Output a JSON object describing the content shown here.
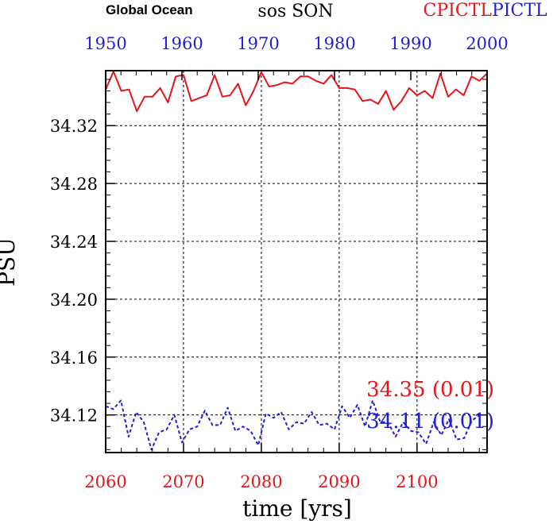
{
  "chart_data": {
    "type": "line",
    "title_left": "Global Ocean",
    "title_center": "sos SON",
    "legend": [
      {
        "label": "CPICTL",
        "color": "#e8141b"
      },
      {
        "label": "PICTL",
        "color": "#1f1fd6"
      }
    ],
    "xlabel": "time [yrs]",
    "ylabel": "PSU",
    "bottom_axis": {
      "ticks": [
        "2060",
        "2070",
        "2080",
        "2090",
        "2100"
      ],
      "range": [
        2060,
        2109
      ],
      "color": "#e8141b"
    },
    "top_axis": {
      "ticks": [
        "1950",
        "1960",
        "1970",
        "1980",
        "1990",
        "2000"
      ],
      "range": [
        1950,
        2000
      ],
      "color": "#1f1fd6"
    },
    "y_axis": {
      "ticks": [
        "34.12",
        "34.16",
        "34.20",
        "34.24",
        "34.28",
        "34.32"
      ],
      "range": [
        34.094,
        34.358
      ]
    },
    "grid": true,
    "series": [
      {
        "name": "CPICTL",
        "color": "#e8141b",
        "style": "solid",
        "x_start": 2060,
        "values": [
          34.345,
          34.358,
          34.344,
          34.345,
          34.33,
          34.34,
          34.34,
          34.346,
          34.336,
          34.354,
          34.355,
          34.337,
          34.339,
          34.341,
          34.355,
          34.34,
          34.341,
          34.349,
          34.334,
          34.344,
          34.357,
          34.347,
          34.348,
          34.35,
          34.349,
          34.354,
          34.354,
          34.351,
          34.349,
          34.355,
          34.346,
          34.346,
          34.345,
          34.337,
          34.338,
          34.335,
          34.344,
          34.331,
          34.337,
          34.346,
          34.341,
          34.344,
          34.339,
          34.356,
          34.34,
          34.345,
          34.341,
          34.354,
          34.351,
          34.356
        ]
      },
      {
        "name": "PICTL",
        "color": "#1f1fd6",
        "style": "dashed",
        "x_start": 1950,
        "values": [
          34.126,
          34.124,
          34.13,
          34.105,
          34.122,
          34.115,
          34.096,
          34.108,
          34.11,
          34.12,
          34.101,
          34.11,
          34.112,
          34.123,
          34.113,
          34.113,
          34.125,
          34.109,
          34.112,
          34.109,
          34.099,
          34.121,
          34.118,
          34.122,
          34.11,
          34.115,
          34.114,
          34.122,
          34.113,
          34.114,
          34.11,
          34.126,
          34.118,
          34.127,
          34.112,
          34.13,
          34.115,
          34.115,
          34.105,
          34.115,
          34.109,
          34.108,
          34.1,
          34.115,
          34.106,
          34.117,
          34.103,
          34.104,
          34.116,
          34.12
        ]
      }
    ],
    "annotations": [
      {
        "text": "34.35  (0.01)",
        "color": "#e8141b"
      },
      {
        "text": "34.11  (0.01)",
        "color": "#1f1fd6"
      }
    ]
  }
}
